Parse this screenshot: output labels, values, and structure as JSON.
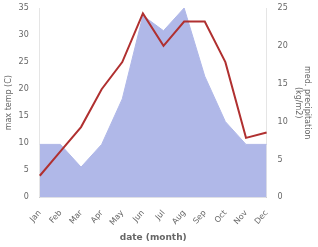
{
  "chart_data": {
    "type": "line",
    "categories": [
      "Jan",
      "Feb",
      "Mar",
      "Apr",
      "May",
      "Jun",
      "Jul",
      "Aug",
      "Sep",
      "Oct",
      "Nov",
      "Dec"
    ],
    "xlabel": "date (month)",
    "ylabel": "max temp (C)",
    "y2label": "med. precipitation\n(kg/m2)",
    "series": [
      {
        "type": "area",
        "color": "#b0b8e8",
        "values": [
          7,
          7,
          4,
          7,
          13,
          24,
          22,
          25,
          16,
          10,
          7,
          7
        ],
        "axis": "y2"
      },
      {
        "type": "line",
        "color": "#b03030",
        "values": [
          4,
          8.5,
          13,
          20,
          25,
          34,
          28,
          32.5,
          32.5,
          25,
          11,
          12
        ]
      }
    ],
    "ylim": [
      0,
      35
    ],
    "yticks": [
      0,
      5,
      10,
      15,
      20,
      25,
      30,
      35
    ],
    "y2lim": [
      0,
      25
    ],
    "y2ticks": [
      0,
      5,
      10,
      15,
      20,
      25
    ],
    "grid": false
  }
}
